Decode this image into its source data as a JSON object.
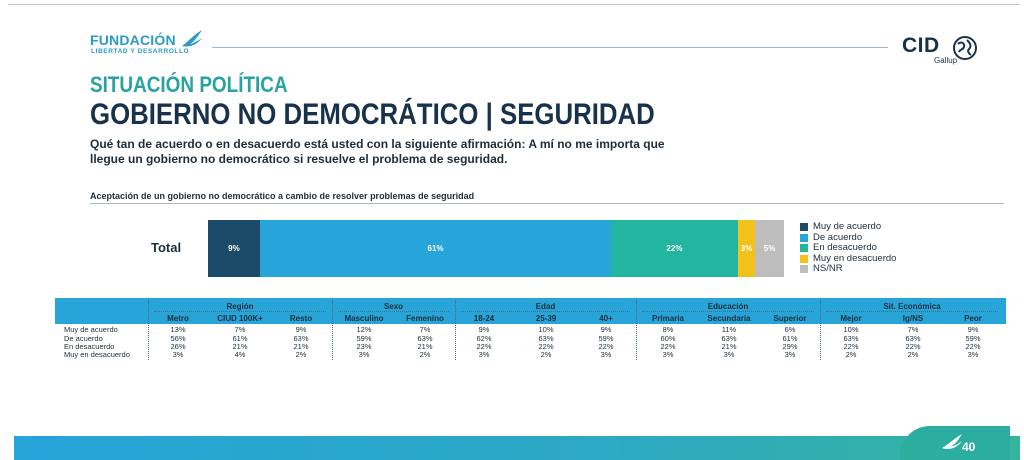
{
  "header": {
    "brand_name": "FUNDACIÓN",
    "brand_sub": "LIBERTAD Y DESARROLLO",
    "partner_name": "CID",
    "partner_sub": "Gallup"
  },
  "section_title": "SITUACIÓN POLÍTICA",
  "main_title": "GOBIERNO NO DEMOCRÁTICO | SEGURIDAD",
  "question": "Qué tan de acuerdo o en desacuerdo está usted con la siguiente afirmación: A mí no me importa que llegue un gobierno no democrático si resuelve el problema de seguridad.",
  "page_number": "40",
  "colors": {
    "muy_de_acuerdo": "#1b4b68",
    "de_acuerdo": "#27a4d8",
    "en_desacuerdo": "#22b5a0",
    "muy_en_desacuerdo": "#f2c21b",
    "ns_nr": "#bdbdbd",
    "table_header": "#27a4d8"
  },
  "chart_data": [
    {
      "type": "bar",
      "orientation": "horizontal-stacked",
      "title": "Aceptación de un gobierno no democrático a cambio de resolver problemas de seguridad",
      "categories": [
        "Total"
      ],
      "series": [
        {
          "name": "Muy de acuerdo",
          "values": [
            9
          ],
          "label": "9%",
          "color": "#1b4b68"
        },
        {
          "name": "De acuerdo",
          "values": [
            61
          ],
          "label": "61%",
          "color": "#27a4d8"
        },
        {
          "name": "En desacuerdo",
          "values": [
            22
          ],
          "label": "22%",
          "color": "#22b5a0"
        },
        {
          "name": "Muy en desacuerdo",
          "values": [
            3
          ],
          "label": "3%",
          "color": "#f2c21b"
        },
        {
          "name": "NS/NR",
          "values": [
            5
          ],
          "label": "5%",
          "color": "#bdbdbd"
        }
      ],
      "legend_position": "right"
    },
    {
      "type": "table",
      "groups": [
        {
          "name": "Región",
          "columns": [
            "Metro",
            "CIUD 100K+",
            "Resto"
          ]
        },
        {
          "name": "Sexo",
          "columns": [
            "Masculino",
            "Femenino"
          ]
        },
        {
          "name": "Edad",
          "columns": [
            "18-24",
            "25-39",
            "40+"
          ]
        },
        {
          "name": "Educación",
          "columns": [
            "Primaria",
            "Secundaria",
            "Superior"
          ]
        },
        {
          "name": "Sit. Económica",
          "columns": [
            "Mejor",
            "Ig/NS",
            "Peor"
          ]
        }
      ],
      "rows": [
        {
          "label": "Muy de acuerdo",
          "values": [
            "13%",
            "7%",
            "9%",
            "12%",
            "7%",
            "9%",
            "10%",
            "9%",
            "8%",
            "11%",
            "6%",
            "10%",
            "7%",
            "9%"
          ]
        },
        {
          "label": "De acuerdo",
          "values": [
            "56%",
            "61%",
            "63%",
            "59%",
            "63%",
            "62%",
            "63%",
            "59%",
            "60%",
            "63%",
            "61%",
            "63%",
            "63%",
            "59%"
          ]
        },
        {
          "label": "En desacuerdo",
          "values": [
            "26%",
            "21%",
            "21%",
            "23%",
            "21%",
            "22%",
            "22%",
            "22%",
            "22%",
            "21%",
            "29%",
            "22%",
            "22%",
            "22%"
          ]
        },
        {
          "label": "Muy en desacuerdo",
          "values": [
            "3%",
            "4%",
            "2%",
            "3%",
            "2%",
            "3%",
            "2%",
            "3%",
            "3%",
            "3%",
            "3%",
            "2%",
            "2%",
            "3%"
          ]
        }
      ]
    }
  ]
}
